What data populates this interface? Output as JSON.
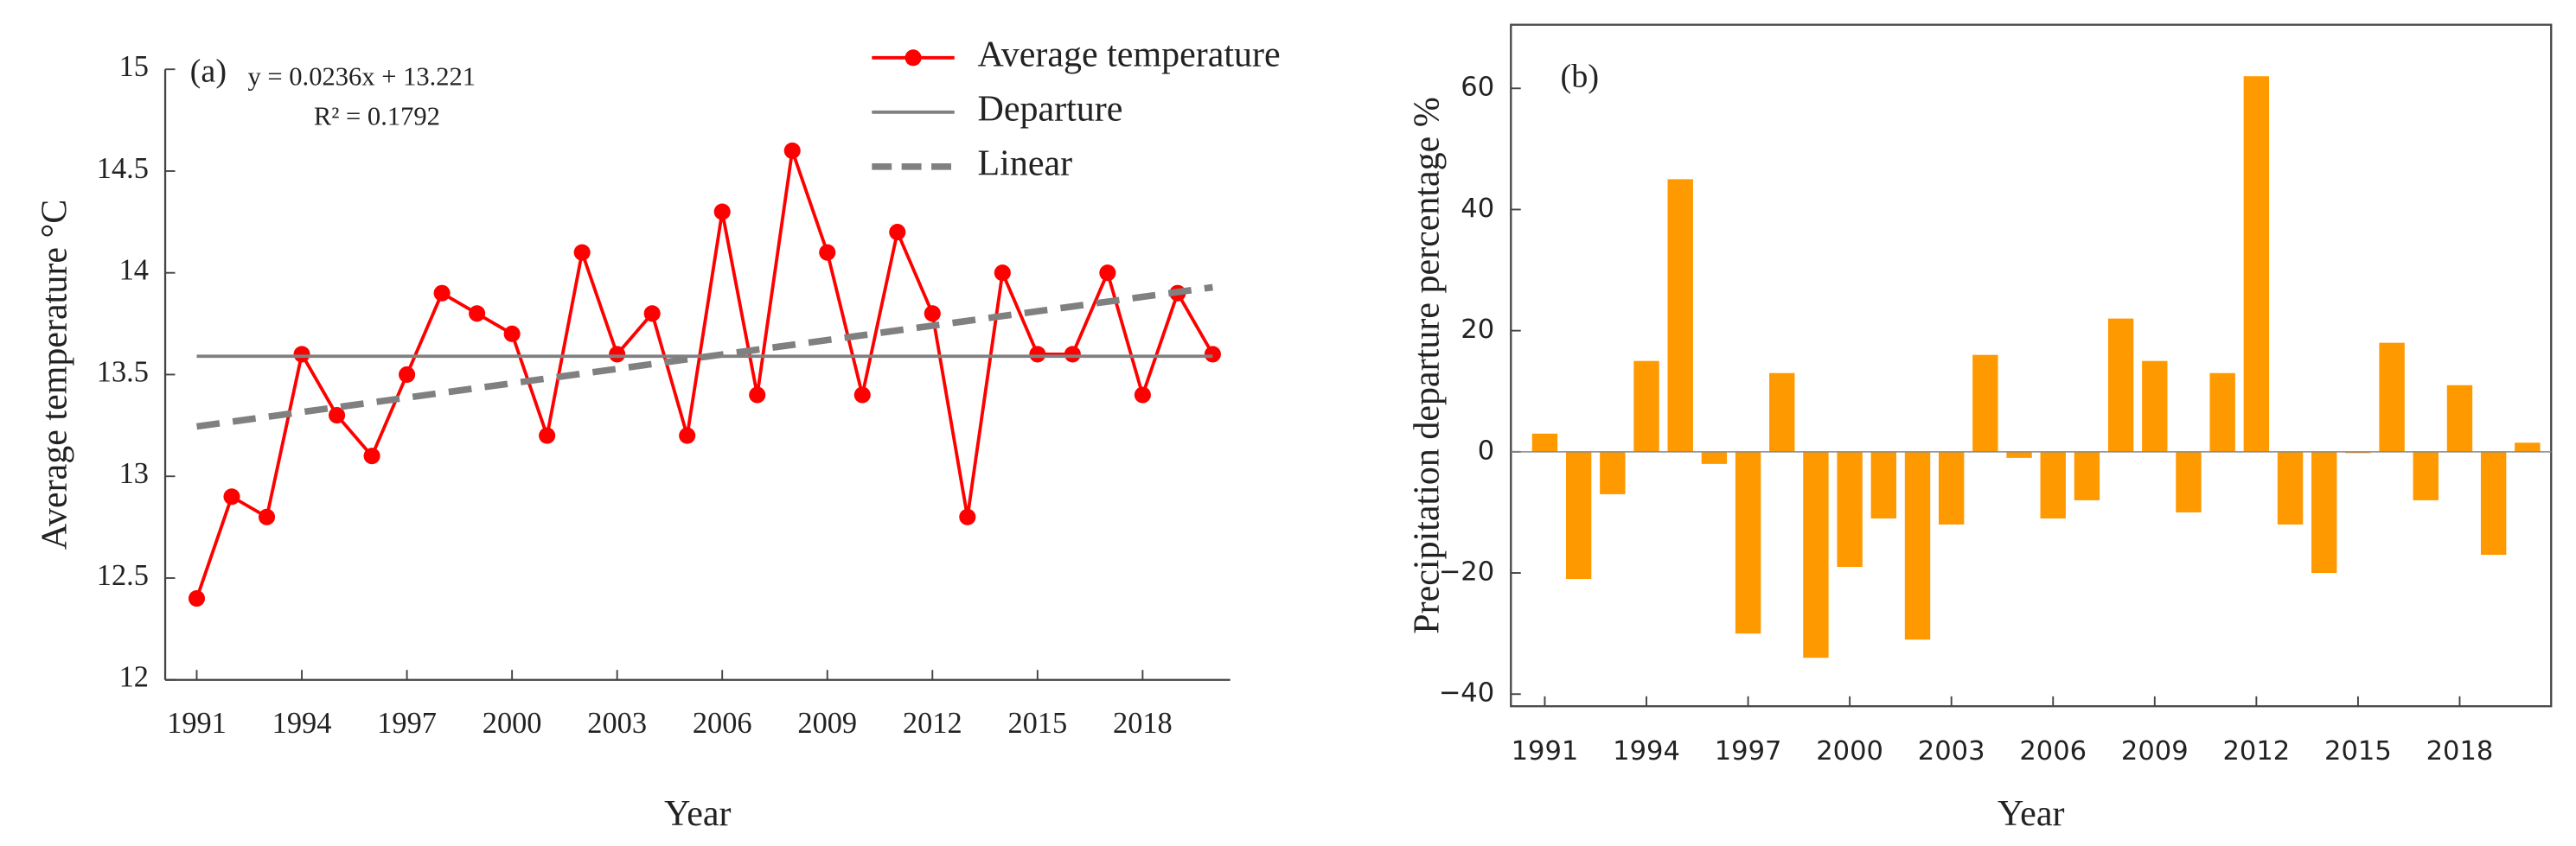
{
  "chart_data": [
    {
      "type": "line",
      "annotations": [
        "(a)",
        "y = 0.0236x + 13.221",
        "R² = 0.1792"
      ],
      "x_label": "Year",
      "y_label": "Average temperature °C",
      "xlim": [
        1990.1,
        2020.5
      ],
      "xticks": [
        1991,
        1994,
        1997,
        2000,
        2003,
        2006,
        2009,
        2012,
        2015,
        2018
      ],
      "ylim": [
        12,
        15
      ],
      "yticks": [
        12,
        12.5,
        13,
        13.5,
        14,
        14.5,
        15
      ],
      "series": [
        {
          "name": "Average temperature",
          "color": "#ff0000",
          "marker": true,
          "x": [
            1991,
            1992,
            1993,
            1994,
            1995,
            1996,
            1997,
            1998,
            1999,
            2000,
            2001,
            2002,
            2003,
            2004,
            2005,
            2006,
            2007,
            2008,
            2009,
            2010,
            2011,
            2012,
            2013,
            2014,
            2015,
            2016,
            2017,
            2018,
            2019,
            2020
          ],
          "values": [
            12.4,
            12.9,
            12.8,
            13.6,
            13.3,
            13.1,
            13.5,
            13.9,
            13.8,
            13.7,
            13.2,
            14.1,
            13.6,
            13.8,
            13.2,
            14.3,
            13.4,
            14.6,
            14.1,
            13.4,
            14.2,
            13.8,
            12.8,
            14.0,
            13.6,
            13.6,
            14.0,
            13.4,
            13.9,
            13.6
          ]
        },
        {
          "name": "Departure",
          "color": "#808080",
          "x": [
            1991,
            2020
          ],
          "values": [
            13.59,
            13.59
          ]
        },
        {
          "name": "Linear",
          "color": "#808080",
          "dash": true,
          "x": [
            1991,
            2020
          ],
          "values": [
            13.245,
            13.929
          ]
        }
      ]
    },
    {
      "type": "bar",
      "annotations": [
        "(b)"
      ],
      "x_label": "Year",
      "y_label": "Precipitation departure percentage %",
      "xlim": [
        1990,
        2020.7
      ],
      "xticks": [
        1991,
        1994,
        1997,
        2000,
        2003,
        2006,
        2009,
        2012,
        2015,
        2018
      ],
      "ylim": [
        -42,
        70.5
      ],
      "yticks": [
        {
          "value": -40,
          "label": "−40"
        },
        {
          "value": -20,
          "label": "−20"
        },
        0,
        20,
        40,
        60
      ],
      "color": "#ff9900",
      "x": [
        1991,
        1992,
        1993,
        1994,
        1995,
        1996,
        1997,
        1998,
        1999,
        2000,
        2001,
        2002,
        2003,
        2004,
        2005,
        2006,
        2007,
        2008,
        2009,
        2010,
        2011,
        2012,
        2013,
        2014,
        2015,
        2016,
        2017,
        2018,
        2019,
        2020
      ],
      "values": [
        3,
        -21,
        -7,
        15,
        45,
        -2,
        -30,
        13,
        -34,
        -19,
        -11,
        -31,
        -12,
        16,
        -1,
        -11,
        -8,
        22,
        15,
        -10,
        13,
        62,
        -12,
        -20,
        0,
        18,
        -8,
        11,
        -17,
        1.5
      ]
    }
  ]
}
